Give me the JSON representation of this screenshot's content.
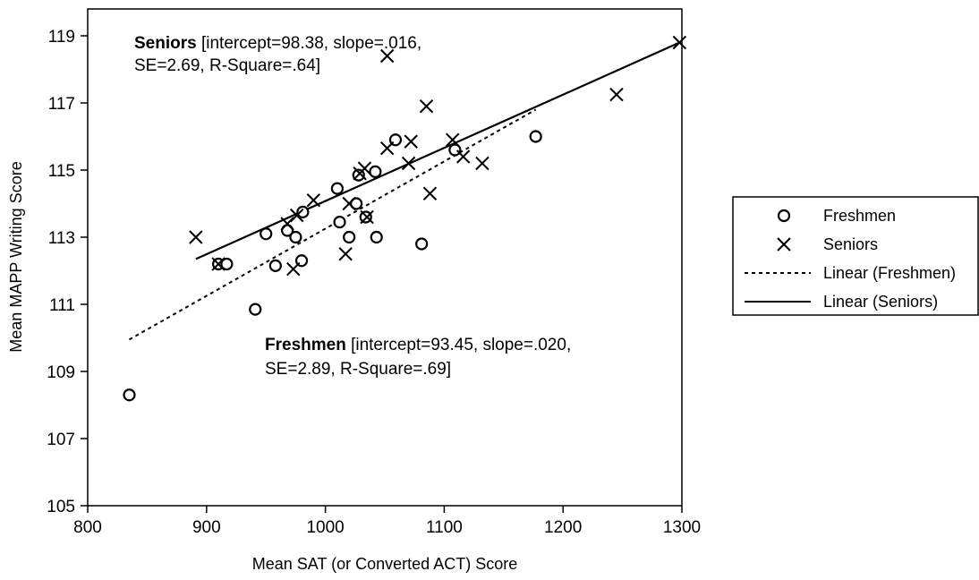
{
  "chart_data": {
    "type": "scatter",
    "xlabel": "Mean SAT (or Converted ACT) Score",
    "ylabel": "Mean MAPP Writing Score",
    "xlim": [
      800,
      1300
    ],
    "ylim": [
      105,
      119.8
    ],
    "x_ticks": [
      "800",
      "900",
      "1000",
      "1100",
      "1200",
      "1300"
    ],
    "y_ticks": [
      "105",
      "107",
      "109",
      "111",
      "113",
      "115",
      "117",
      "119"
    ],
    "grid": false,
    "legend_position": "right",
    "series": [
      {
        "name": "Freshmen",
        "marker": "circle",
        "points": [
          [
            835,
            108.3
          ],
          [
            910,
            112.2
          ],
          [
            917,
            112.2
          ],
          [
            941,
            110.85
          ],
          [
            950,
            113.1
          ],
          [
            958,
            112.15
          ],
          [
            968,
            113.2
          ],
          [
            975,
            113.0
          ],
          [
            980,
            112.3
          ],
          [
            981,
            113.75
          ],
          [
            1010,
            114.45
          ],
          [
            1012,
            113.45
          ],
          [
            1020,
            113.0
          ],
          [
            1026,
            114.0
          ],
          [
            1028,
            114.85
          ],
          [
            1034,
            113.6
          ],
          [
            1042,
            114.95
          ],
          [
            1043,
            113.0
          ],
          [
            1059,
            115.9
          ],
          [
            1081,
            112.8
          ],
          [
            1109,
            115.6
          ],
          [
            1177,
            116.0
          ]
        ]
      },
      {
        "name": "Seniors",
        "marker": "x",
        "points": [
          [
            891,
            113.0
          ],
          [
            910,
            112.2
          ],
          [
            968,
            113.4
          ],
          [
            973,
            112.05
          ],
          [
            976,
            113.65
          ],
          [
            990,
            114.1
          ],
          [
            1017,
            112.5
          ],
          [
            1020,
            114.0
          ],
          [
            1029,
            114.9
          ],
          [
            1033,
            115.05
          ],
          [
            1035,
            113.6
          ],
          [
            1052,
            118.4
          ],
          [
            1052,
            115.65
          ],
          [
            1070,
            115.2
          ],
          [
            1072,
            115.85
          ],
          [
            1085,
            116.9
          ],
          [
            1088,
            114.3
          ],
          [
            1107,
            115.9
          ],
          [
            1116,
            115.4
          ],
          [
            1132,
            115.2
          ],
          [
            1245,
            117.25
          ],
          [
            1298,
            118.8
          ]
        ]
      }
    ],
    "trendlines": [
      {
        "name": "Linear (Freshmen)",
        "style": "dashed",
        "x": [
          835,
          1177
        ],
        "y": [
          109.95,
          116.8
        ]
      },
      {
        "name": "Linear (Seniors)",
        "style": "solid",
        "x": [
          891,
          1298
        ],
        "y": [
          112.35,
          118.8
        ]
      }
    ],
    "annotations": [
      {
        "group": "Seniors",
        "bold": "Seniors",
        "line1_rest": " [intercept=98.38, slope=.016,",
        "line2": "SE=2.69, R-Square=.64]"
      },
      {
        "group": "Freshmen",
        "bold": "Freshmen",
        "line1_rest": " [intercept=93.45, slope=.020,",
        "line2": "SE=2.89, R-Square=.69]"
      }
    ],
    "legend": [
      {
        "label": "Freshmen",
        "kind": "circle"
      },
      {
        "label": "Seniors",
        "kind": "x"
      },
      {
        "label": "Linear (Freshmen)",
        "kind": "dashed"
      },
      {
        "label": "Linear (Seniors)",
        "kind": "solid"
      }
    ]
  }
}
